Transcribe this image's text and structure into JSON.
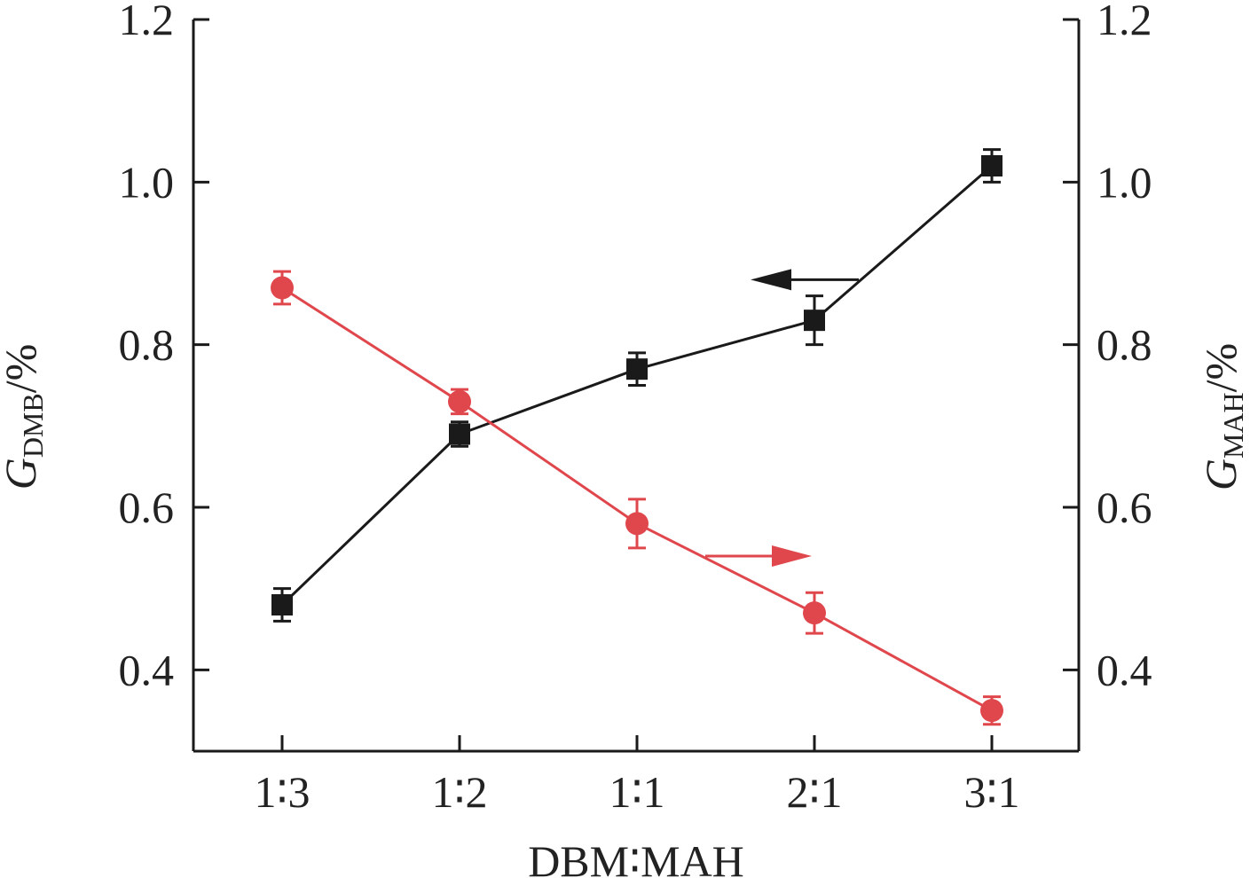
{
  "chart_data": {
    "type": "line",
    "categories": [
      "1∶3",
      "1∶2",
      "1∶1",
      "2∶1",
      "3∶1"
    ],
    "xlabel": "DBM∶MAH",
    "ylabel_left": {
      "symbol": "G",
      "subscript": "DMB",
      "unit": "/%"
    },
    "ylabel_right": {
      "symbol": "G",
      "subscript": "MAH",
      "unit": "/%"
    },
    "ylim_left": [
      0.3,
      1.2
    ],
    "ylim_right": [
      0.3,
      1.2
    ],
    "yticks_left": [
      "0.4",
      "0.6",
      "0.8",
      "1.0",
      "1.2"
    ],
    "yticks_right": [
      "0.4",
      "0.6",
      "0.8",
      "1.0",
      "1.2"
    ],
    "series": [
      {
        "axis": "left",
        "marker": "square",
        "color": "#1a1a1a",
        "values": [
          0.48,
          0.69,
          0.77,
          0.83,
          1.02
        ],
        "errors": [
          0.02,
          0.015,
          0.02,
          0.03,
          0.02
        ]
      },
      {
        "axis": "right",
        "marker": "circle",
        "color": "#e0474c",
        "values": [
          0.87,
          0.73,
          0.58,
          0.47,
          0.35
        ],
        "errors": [
          0.02,
          0.015,
          0.03,
          0.025,
          0.017
        ]
      }
    ],
    "grid": false,
    "legend": "none"
  }
}
